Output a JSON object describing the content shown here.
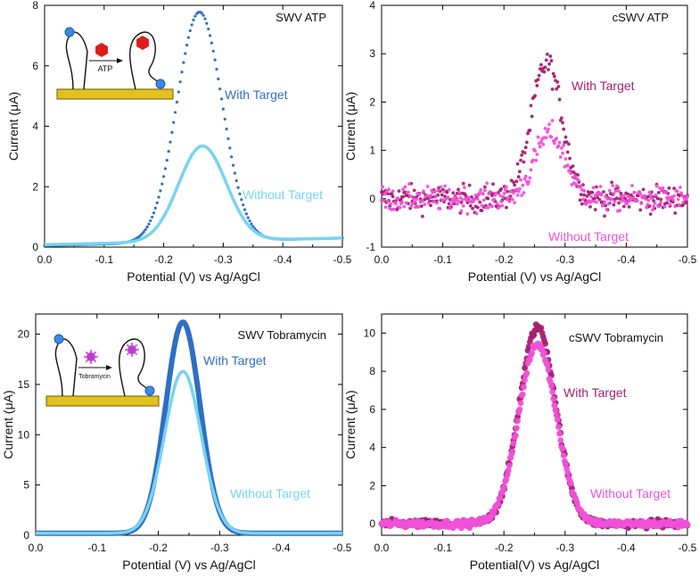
{
  "chart_data": [
    {
      "type": "line",
      "panel_title": "SWV ATP",
      "xlabel": "Potential (V) vs Ag/AgCl",
      "ylabel": "Current (μA)",
      "xlim": [
        0.0,
        -0.5
      ],
      "ylim": [
        0,
        8
      ],
      "xticks": [
        "0.0",
        "-0.1",
        "-0.2",
        "-0.3",
        "-0.4",
        "-0.5"
      ],
      "yticks": [
        "0",
        "2",
        "4",
        "6",
        "8"
      ],
      "inset": {
        "arrow_label": "ATP",
        "target_color": "#e01b1b"
      },
      "series": [
        {
          "name": "With Target",
          "color": "#2f6fc4",
          "style": "dots",
          "peak_x": -0.26,
          "peak_y": 7.6,
          "baseline_start": 0.05,
          "baseline_end": 0.3,
          "width": 0.038
        },
        {
          "name": "Without Target",
          "color": "#76d4f0",
          "style": "line",
          "peak_x": -0.265,
          "peak_y": 3.15,
          "baseline_start": 0.08,
          "baseline_end": 0.3,
          "width": 0.04
        }
      ]
    },
    {
      "type": "scatter",
      "panel_title": "cSWV ATP",
      "xlabel": "Potential (V) vs Ag/AgCl",
      "ylabel": "Current (μA)",
      "xlim": [
        0.0,
        -0.5
      ],
      "ylim": [
        -1,
        4
      ],
      "xticks": [
        "0.0",
        "-0.1",
        "-0.2",
        "-0.3",
        "-0.4",
        "-0.5"
      ],
      "yticks": [
        "-1",
        "0",
        "1",
        "2",
        "3",
        "4"
      ],
      "series": [
        {
          "name": "With Target",
          "color": "#a3206f",
          "peak_x": -0.27,
          "peak_y": 2.8,
          "width": 0.025,
          "noise": 0.22
        },
        {
          "name": "Without Target",
          "color": "#f050d8",
          "peak_x": -0.275,
          "peak_y": 1.35,
          "width": 0.025,
          "noise": 0.2
        }
      ]
    },
    {
      "type": "line",
      "panel_title": "SWV Tobramycin",
      "xlabel": "Potential (V) vs Ag/AgCl",
      "ylabel": "Current (μA)",
      "xlim": [
        0.0,
        -0.5
      ],
      "ylim": [
        0,
        22
      ],
      "xticks": [
        "0.0",
        "-0.1",
        "-0.2",
        "-0.3",
        "-0.4",
        "-0.5"
      ],
      "yticks": [
        "0",
        "5",
        "10",
        "15",
        "20"
      ],
      "inset": {
        "arrow_label": "Tobramycin",
        "target_color": "#c03ad0"
      },
      "series": [
        {
          "name": "With Target",
          "color": "#2f6fc4",
          "style": "thick",
          "peak_x": -0.24,
          "peak_y": 21.0,
          "baseline_start": 0.2,
          "baseline_end": 0.2,
          "width": 0.028
        },
        {
          "name": "Without Target",
          "color": "#76d4f0",
          "style": "line",
          "peak_x": -0.24,
          "peak_y": 16.1,
          "baseline_start": 0.2,
          "baseline_end": 0.2,
          "width": 0.03
        }
      ]
    },
    {
      "type": "scatter",
      "panel_title": "cSWV Tobramycin",
      "xlabel": "Potential(V) vs Ag/AgCl",
      "ylabel": "Current (μA)",
      "xlim": [
        0.0,
        -0.5
      ],
      "ylim": [
        -0.6,
        11
      ],
      "xticks": [
        "0.0",
        "-0.1",
        "-0.2",
        "-0.3",
        "-0.4",
        "-0.5"
      ],
      "yticks": [
        "0",
        "2",
        "4",
        "6",
        "8",
        "10"
      ],
      "series": [
        {
          "name": "With Target",
          "color": "#a3206f",
          "peak_x": -0.255,
          "peak_y": 10.3,
          "width": 0.03,
          "noise": 0.25
        },
        {
          "name": "Without Target",
          "color": "#f050d8",
          "peak_x": -0.255,
          "peak_y": 9.4,
          "width": 0.031,
          "noise": 0.22
        }
      ]
    }
  ]
}
